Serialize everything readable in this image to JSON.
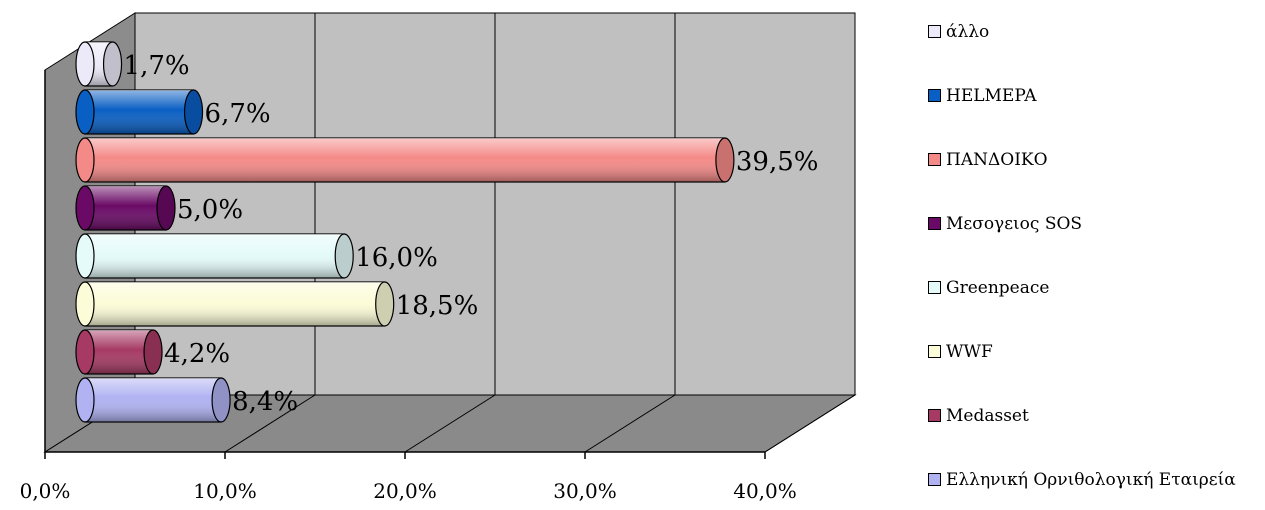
{
  "chart_data": {
    "type": "bar",
    "orientation": "horizontal",
    "style": "3d-cylinder",
    "categories": [
      "άλλο",
      "HELMEPA",
      "ΠΑΝΔΟΙΚΟ",
      "Μεσογειος SOS",
      "Greenpeace",
      "WWF",
      "Medasset",
      "Ελληνική Ορνιθολογική Εταιρεία"
    ],
    "values": [
      1.7,
      6.7,
      39.5,
      5.0,
      16.0,
      18.5,
      4.2,
      8.4
    ],
    "data_labels": [
      "1,7%",
      "6,7%",
      "39,5%",
      "5,0%",
      "16,0%",
      "18,5%",
      "4,2%",
      "8,4%"
    ],
    "colors": [
      "#ECEAF8",
      "#0A5FC4",
      "#F48A88",
      "#6A0A66",
      "#E4FBFA",
      "#FCFCD8",
      "#A63A64",
      "#B0B2F2"
    ],
    "xlim": [
      0,
      40
    ],
    "x_ticks": [
      "0,0%",
      "10,0%",
      "20,0%",
      "30,0%",
      "40,0%"
    ],
    "grid": true,
    "legend_position": "right",
    "title": "",
    "xlabel": "",
    "ylabel": ""
  }
}
